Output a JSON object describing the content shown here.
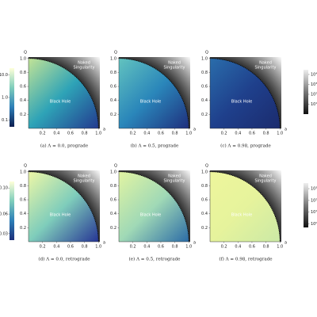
{
  "chart_data": [
    {
      "type": "heatmap",
      "caption": "(a) Λ = 0.0, prograde",
      "xlabel": "a",
      "ylabel": "Q",
      "xlim": [
        0,
        1.02
      ],
      "ylim": [
        0,
        1.02
      ],
      "xticks": [
        0.2,
        0.4,
        0.6,
        0.8,
        {
          "value": 1,
          "label": "1.0"
        }
      ],
      "yticks": [
        0.2,
        0.4,
        0.6,
        0.8,
        {
          "value": 1,
          "label": "1.0"
        }
      ],
      "annotations": [
        "Naked",
        "Singularity",
        "Black Hole"
      ],
      "colors": [
        "#c2e396",
        "#2ea3b7",
        "#233a8f"
      ],
      "colorbar": {
        "side": "left",
        "log": true,
        "clim": [
          0.05,
          20
        ],
        "ticks": [
          0.1,
          {
            "value": 1,
            "label": "1.0"
          },
          {
            "value": 10,
            "label": "10.0"
          }
        ],
        "colors": [
          "#0d1d4f",
          "#2c7fb8",
          "#7fcdbb",
          "#ffffd9"
        ]
      }
    },
    {
      "type": "heatmap",
      "caption": "(b) Λ = 0.5, prograde",
      "xlabel": "a",
      "ylabel": "Q",
      "xlim": [
        0,
        1.02
      ],
      "ylim": [
        0,
        1.02
      ],
      "xticks": [
        0.2,
        0.4,
        0.6,
        0.8,
        {
          "value": 1,
          "label": "1.0"
        }
      ],
      "yticks": [
        0.2,
        0.4,
        0.6,
        0.8,
        {
          "value": 1,
          "label": "1.0"
        }
      ],
      "annotations": [
        "Naked",
        "Singularity",
        "Black Hole"
      ],
      "colors": [
        "#62c3bf",
        "#2a86ba",
        "#1f2f7d"
      ]
    },
    {
      "type": "heatmap",
      "caption": "(c) Λ = 0.98, prograde",
      "xlabel": "a",
      "ylabel": "Q",
      "xlim": [
        0,
        1.02
      ],
      "ylim": [
        0,
        1.02
      ],
      "xticks": [
        0.2,
        0.4,
        0.6,
        0.8,
        {
          "value": 1,
          "label": "1.0"
        }
      ],
      "yticks": [
        0.2,
        0.4,
        0.6,
        0.8,
        {
          "value": 1,
          "label": "1.0"
        }
      ],
      "annotations": [
        "Naked",
        "Singularity",
        "Black Hole"
      ],
      "colors": [
        "#2a6dab",
        "#1f408c",
        "#1b2b6e"
      ],
      "colorbar": {
        "side": "right",
        "log": true,
        "clim": [
          1,
          30000
        ],
        "ticks": [
          {
            "value": 10,
            "label": "10¹"
          },
          {
            "value": 100,
            "label": "10²"
          },
          {
            "value": 1000,
            "label": "10³"
          },
          {
            "value": 10000,
            "label": "10⁴"
          }
        ],
        "colors": [
          "#111111",
          "#777777",
          "#eeeeee"
        ]
      }
    },
    {
      "type": "heatmap",
      "caption": "(d) Λ = 0.0, retrograde",
      "xlabel": "a",
      "ylabel": "Q",
      "xlim": [
        0,
        1.02
      ],
      "ylim": [
        0,
        1.02
      ],
      "xticks": [
        0.2,
        0.4,
        0.6,
        0.8,
        {
          "value": 1,
          "label": "1.0"
        }
      ],
      "yticks": [
        0.2,
        0.4,
        0.6,
        0.8,
        {
          "value": 1,
          "label": "1.0"
        }
      ],
      "annotations": [
        "Naked",
        "Singularity",
        "Black Hole"
      ],
      "colors": [
        "#eef7a6",
        "#7fcdbb",
        "#253494"
      ],
      "colorbar": {
        "side": "left",
        "log": false,
        "clim": [
          0.02,
          0.11
        ],
        "ticks": [
          0.03,
          0.06,
          {
            "value": 0.1,
            "label": "0.10"
          }
        ],
        "colors": [
          "#1d2f7a",
          "#2c7fb8",
          "#7fcdbb",
          "#ffffd9"
        ]
      }
    },
    {
      "type": "heatmap",
      "caption": "(e) Λ = 0.5, retrograde",
      "xlabel": "a",
      "ylabel": "Q",
      "xlim": [
        0,
        1.02
      ],
      "ylim": [
        0,
        1.02
      ],
      "xticks": [
        0.2,
        0.4,
        0.6,
        0.8,
        {
          "value": 1,
          "label": "1.0"
        }
      ],
      "yticks": [
        0.2,
        0.4,
        0.6,
        0.8,
        {
          "value": 1,
          "label": "1.0"
        }
      ],
      "annotations": [
        "Naked",
        "Singularity",
        "Black Hole"
      ],
      "colors": [
        "#e2f4a2",
        "#a0d9b6",
        "#2b6ba6"
      ]
    },
    {
      "type": "heatmap",
      "caption": "(f) Λ = 0.98, retrograde",
      "xlabel": "a",
      "ylabel": "Q",
      "xlim": [
        0,
        1.02
      ],
      "ylim": [
        0,
        1.02
      ],
      "xticks": [
        0.2,
        0.4,
        0.6,
        0.8,
        {
          "value": 1,
          "label": "1.0"
        }
      ],
      "yticks": [
        0.2,
        0.4,
        0.6,
        0.8,
        {
          "value": 1,
          "label": "1.0"
        }
      ],
      "annotations": [
        "Naked",
        "Singularity",
        "Black Hole"
      ],
      "colors": [
        "#eef69c",
        "#e6f39c",
        "#cbe9a6"
      ],
      "colorbar": {
        "side": "right",
        "log": true,
        "clim": [
          0.5,
          3000
        ],
        "ticks": [
          {
            "value": 1,
            "label": "10⁰"
          },
          {
            "value": 10,
            "label": "10¹"
          },
          {
            "value": 100,
            "label": "10²"
          },
          {
            "value": 1000,
            "label": "10³"
          }
        ],
        "colors": [
          "#111111",
          "#777777",
          "#eeeeee"
        ]
      }
    }
  ]
}
